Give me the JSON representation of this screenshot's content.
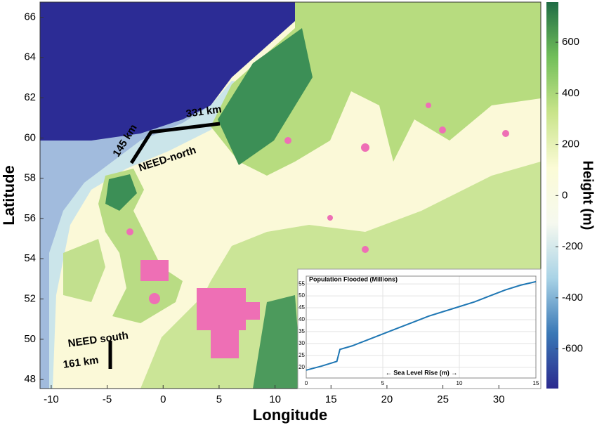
{
  "map": {
    "xlabel": "Longitude",
    "ylabel": "Latitude",
    "xlim": [
      -11,
      33.75
    ],
    "ylim": [
      47.55,
      66.75
    ],
    "xticks": [
      -10,
      -5,
      0,
      5,
      10,
      15,
      20,
      25,
      30
    ],
    "yticks": [
      48,
      50,
      52,
      54,
      56,
      58,
      60,
      62,
      64,
      66
    ],
    "annotations": [
      "331 km",
      "145 km",
      "NEED-north",
      "NEED south",
      "161 km"
    ]
  },
  "colorbar": {
    "label": "Height (m)",
    "clim": [
      -755,
      757
    ],
    "ticks": [
      -600,
      -400,
      -200,
      0,
      200,
      400,
      600
    ],
    "colors": [
      "#2b2a8f",
      "#3a78b6",
      "#a9d3e6",
      "#f6f9ef",
      "#fbfbd6",
      "#c9e48a",
      "#72bf5a",
      "#1f6c45"
    ]
  },
  "chart_data": {
    "type": "line",
    "title": "Population Flooded (Millions)",
    "xlabel": "← Sea Level Rise (m) →",
    "x": [
      0,
      1,
      2,
      2.2,
      3,
      4,
      5,
      6,
      7,
      8,
      9,
      10,
      11,
      12,
      13,
      14,
      15
    ],
    "series": [
      {
        "color": "#1f77b4",
        "values": [
          18.8,
          20.5,
          22.5,
          27.5,
          29,
          31.5,
          34,
          36.5,
          39,
          41.5,
          43.5,
          45.5,
          47.5,
          50,
          52.5,
          54.5,
          56
        ]
      }
    ],
    "xlim": [
      0,
      15
    ],
    "ylim": [
      15.5,
      58.3
    ],
    "xticks": [
      0,
      5,
      10,
      15
    ],
    "yticks": [
      20,
      25,
      30,
      35,
      40,
      45,
      50,
      55
    ],
    "grid": true
  }
}
